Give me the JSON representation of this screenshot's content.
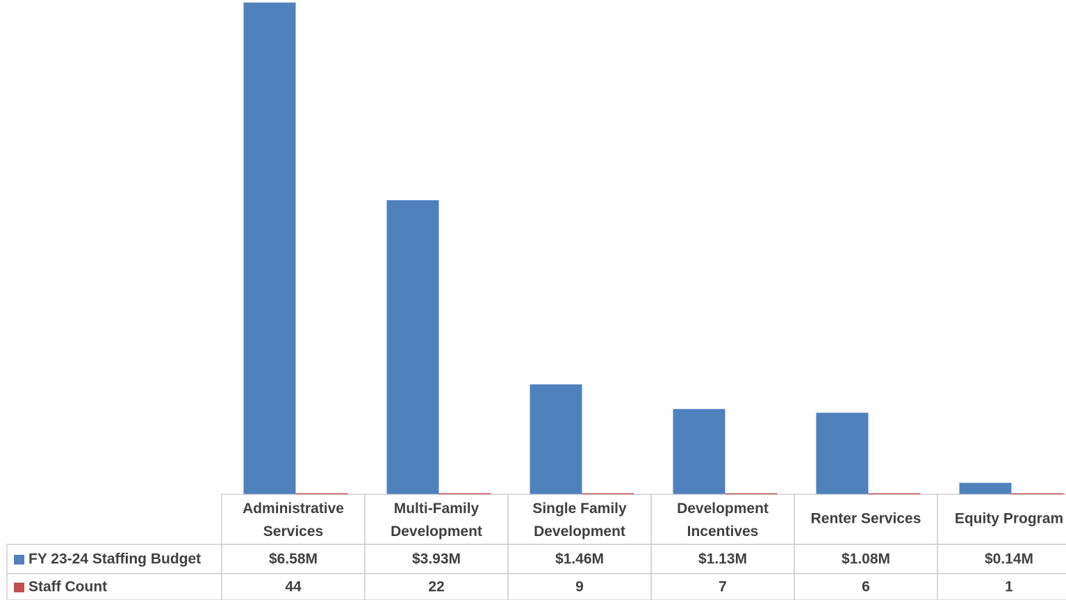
{
  "chart_data": {
    "type": "bar",
    "categories": [
      "Administrative Services",
      "Multi-Family Development",
      "Single Family Development",
      "Development Incentives",
      "Renter Services",
      "Equity Program"
    ],
    "series": [
      {
        "name": "FY 23-24 Staffing Budget",
        "color": "#4f81bd",
        "values": [
          6580000,
          3930000,
          1460000,
          1130000,
          1080000,
          140000
        ],
        "value_labels": [
          "$6.58M",
          "$3.93M",
          "$1.46M",
          "$1.13M",
          "$1.08M",
          "$0.14M"
        ]
      },
      {
        "name": "Staff Count",
        "color": "#c0504d",
        "values": [
          44,
          22,
          9,
          7,
          6,
          1
        ]
      }
    ],
    "ylim": [
      0,
      6600000
    ]
  }
}
